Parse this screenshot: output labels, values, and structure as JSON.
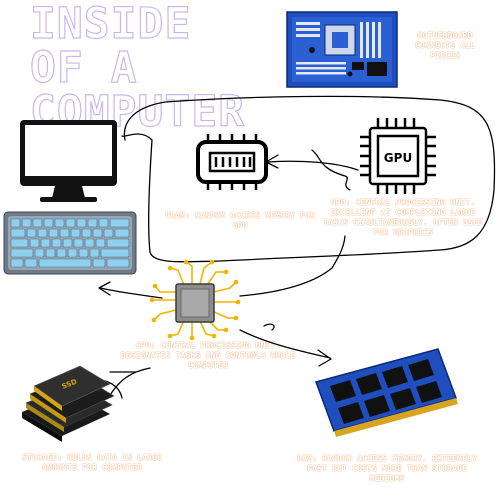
{
  "title": {
    "line1": "INSIDE OF A",
    "line2": "COMPUTER"
  },
  "captions": {
    "motherboard": "Motherboard connects all pieces",
    "vram": "VRAM: Random Access Memory for GPU",
    "gpu": "GPU: Central Processing unit. Excellent at completing large tasks simultaneously. Often used for graphics",
    "cpu": "CPU: Central Processing unit. Designates tasks and controls whole computer",
    "storage": "Storage: holds data in large amounts for computer",
    "ram": "RAM: Random Access Memory. Extremely fast but costs more than storage mediums"
  },
  "icons": {
    "motherboard": "motherboard-icon",
    "monitor": "monitor-icon",
    "keyboard": "keyboard-icon",
    "vram": "vram-chip-icon",
    "gpu": "gpu-chip-icon",
    "cpu": "cpu-chip-icon",
    "ssd": "ssd-stack-icon",
    "ram": "ram-stick-icon",
    "gpu_label": "GPU",
    "ssd_label": "SSD"
  },
  "colors": {
    "title_outline": "#c9b8ee",
    "caption_outline": "#f0b98c",
    "board_blue": "#1f4fbf",
    "ink": "#000000"
  }
}
